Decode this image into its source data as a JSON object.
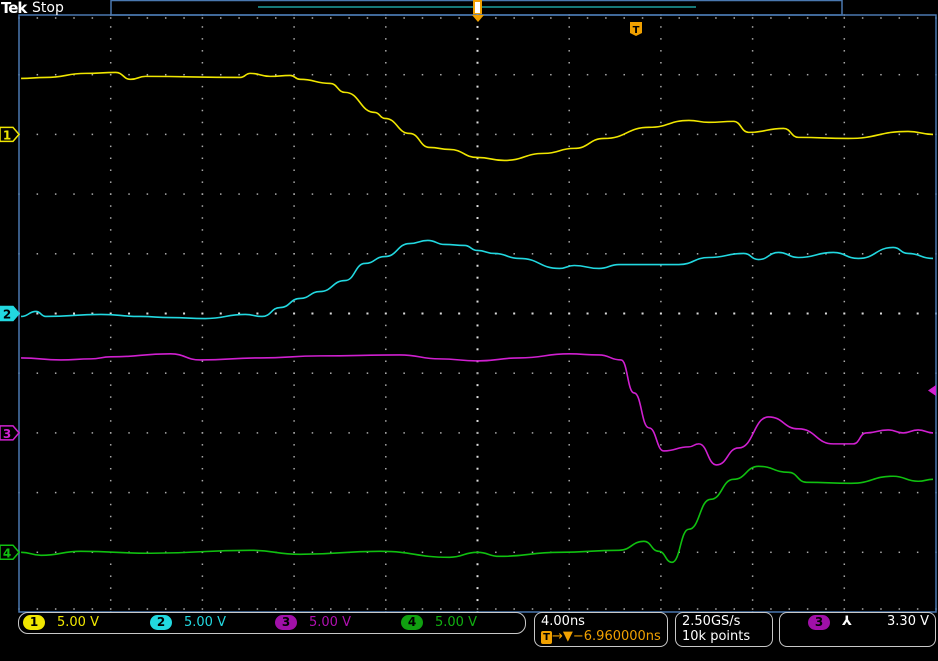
{
  "header": {
    "brand": "Tek",
    "acquisition_state": "Stop"
  },
  "colors": {
    "ch1": "#f0e600",
    "ch2": "#22d8e0",
    "ch3": "#d020d0",
    "ch4": "#10c010",
    "trigger": "#f0a000",
    "border": "#4a78b0"
  },
  "channels": [
    {
      "number": "1",
      "scale": "5.00 V"
    },
    {
      "number": "2",
      "scale": "5.00 V"
    },
    {
      "number": "3",
      "scale": "5.00 V"
    },
    {
      "number": "4",
      "scale": "5.00 V"
    }
  ],
  "horizontal": {
    "scale": "4.00ns",
    "trigger_icon": "T",
    "delay": "→▼−6.960000ns"
  },
  "acquisition": {
    "sample_rate": "2.50GS/s",
    "record_length": "10k points"
  },
  "trigger": {
    "source": "3",
    "slope_icon": "falling-edge",
    "slope_glyph": "⅄",
    "level": "3.30 V"
  },
  "chart_data": {
    "type": "line",
    "xlabel": "",
    "ylabel": "",
    "x_units": "ns",
    "y_units": "V",
    "xlim": [
      -20,
      20
    ],
    "grid": true,
    "divisions": {
      "horizontal": 10,
      "vertical": 10
    },
    "series": [
      {
        "name": "1",
        "color": "#f0e600",
        "points": [
          [
            -19.91,
            4.69
          ],
          [
            -18.83,
            4.77
          ],
          [
            -17.09,
            5.11
          ],
          [
            -15.78,
            5.19
          ],
          [
            -15.13,
            4.61
          ],
          [
            -14.48,
            4.86
          ],
          [
            -10.35,
            4.77
          ],
          [
            -9.91,
            5.11
          ],
          [
            -9.04,
            4.86
          ],
          [
            -8.17,
            4.94
          ],
          [
            -7.74,
            4.61
          ],
          [
            -6.43,
            4.27
          ],
          [
            -5.78,
            3.52
          ],
          [
            -4.48,
            1.84
          ],
          [
            -4.04,
            1.34
          ],
          [
            -2.96,
            0.08
          ],
          [
            -2.09,
            -1.09
          ],
          [
            -1.22,
            -1.26
          ],
          [
            0,
            -1.93
          ],
          [
            1.17,
            -2.18
          ],
          [
            2.91,
            -1.59
          ],
          [
            4.22,
            -1.17
          ],
          [
            5.52,
            -0.34
          ],
          [
            7.48,
            0.59
          ],
          [
            9.22,
            1.17
          ],
          [
            10.09,
            1.01
          ],
          [
            11.17,
            1.09
          ],
          [
            11.83,
            0.17
          ],
          [
            13.35,
            0.5
          ],
          [
            14.0,
            -0.25
          ],
          [
            16.17,
            -0.34
          ],
          [
            18.78,
            0.25
          ],
          [
            19.87,
            0
          ]
        ]
      },
      {
        "name": "2",
        "color": "#22d8e0",
        "points": [
          [
            -19.91,
            -0.25
          ],
          [
            -19.26,
            0.17
          ],
          [
            -18.83,
            -0.25
          ],
          [
            -16.43,
            -0.08
          ],
          [
            -14.7,
            -0.25
          ],
          [
            -13.39,
            -0.34
          ],
          [
            -11.87,
            -0.42
          ],
          [
            -10.13,
            -0.08
          ],
          [
            -9.39,
            -0.25
          ],
          [
            -8.61,
            0.5
          ],
          [
            -7.74,
            1.26
          ],
          [
            -6.87,
            1.84
          ],
          [
            -5.78,
            2.76
          ],
          [
            -4.91,
            4.19
          ],
          [
            -4.04,
            4.77
          ],
          [
            -2.96,
            5.86
          ],
          [
            -2.17,
            6.12
          ],
          [
            -1.43,
            5.78
          ],
          [
            -0.57,
            5.7
          ],
          [
            0,
            5.28
          ],
          [
            0.74,
            5.03
          ],
          [
            1.83,
            4.61
          ],
          [
            3.57,
            3.77
          ],
          [
            4.22,
            4.02
          ],
          [
            5.3,
            3.77
          ],
          [
            6.17,
            4.1
          ],
          [
            8.78,
            4.1
          ],
          [
            10.09,
            4.69
          ],
          [
            11.61,
            5.03
          ],
          [
            12.26,
            4.52
          ],
          [
            13.13,
            5.11
          ],
          [
            14.0,
            4.69
          ],
          [
            15.52,
            5.11
          ],
          [
            16.61,
            4.61
          ],
          [
            18.13,
            5.53
          ],
          [
            18.78,
            5.03
          ],
          [
            19.87,
            4.61
          ]
        ]
      },
      {
        "name": "3",
        "color": "#d020d0",
        "points": [
          [
            -19.91,
            6.28
          ],
          [
            -18.17,
            6.11
          ],
          [
            -16.87,
            6.2
          ],
          [
            -16.0,
            6.37
          ],
          [
            -13.39,
            6.62
          ],
          [
            -12.09,
            6.11
          ],
          [
            -9.48,
            6.28
          ],
          [
            -6.87,
            6.45
          ],
          [
            -3.39,
            6.53
          ],
          [
            -1.65,
            6.2
          ],
          [
            0,
            6.03
          ],
          [
            1.83,
            6.28
          ],
          [
            4.0,
            6.62
          ],
          [
            5.3,
            6.53
          ],
          [
            6.26,
            6.11
          ],
          [
            6.83,
            3.35
          ],
          [
            7.48,
            0.42
          ],
          [
            8.13,
            -1.51
          ],
          [
            9.22,
            -1.17
          ],
          [
            9.65,
            -0.92
          ],
          [
            10.43,
            -2.68
          ],
          [
            11.39,
            -1.26
          ],
          [
            12.7,
            1.34
          ],
          [
            14.0,
            0.34
          ],
          [
            15.52,
            -0.92
          ],
          [
            16.39,
            -0.92
          ],
          [
            16.96,
            0
          ],
          [
            17.91,
            0.25
          ],
          [
            18.57,
            0
          ],
          [
            19.22,
            0.25
          ],
          [
            19.87,
            0
          ]
        ]
      },
      {
        "name": "4",
        "color": "#10c010",
        "points": [
          [
            -19.91,
            0
          ],
          [
            -19.04,
            -0.25
          ],
          [
            -17.3,
            0.08
          ],
          [
            -14.26,
            -0.08
          ],
          [
            -9.91,
            0.17
          ],
          [
            -7.74,
            -0.17
          ],
          [
            -4.26,
            0.08
          ],
          [
            -1.22,
            -0.42
          ],
          [
            0,
            0
          ],
          [
            0.96,
            -0.34
          ],
          [
            3.57,
            0
          ],
          [
            6.17,
            0.17
          ],
          [
            7.26,
            0.92
          ],
          [
            7.91,
            0.08
          ],
          [
            8.48,
            -0.84
          ],
          [
            9.22,
            1.93
          ],
          [
            10.17,
            4.44
          ],
          [
            11.17,
            6.11
          ],
          [
            12.26,
            7.2
          ],
          [
            13.57,
            6.7
          ],
          [
            14.35,
            5.86
          ],
          [
            16.3,
            5.78
          ],
          [
            18.13,
            6.37
          ],
          [
            19.22,
            5.95
          ],
          [
            19.87,
            6.11
          ]
        ]
      }
    ]
  }
}
